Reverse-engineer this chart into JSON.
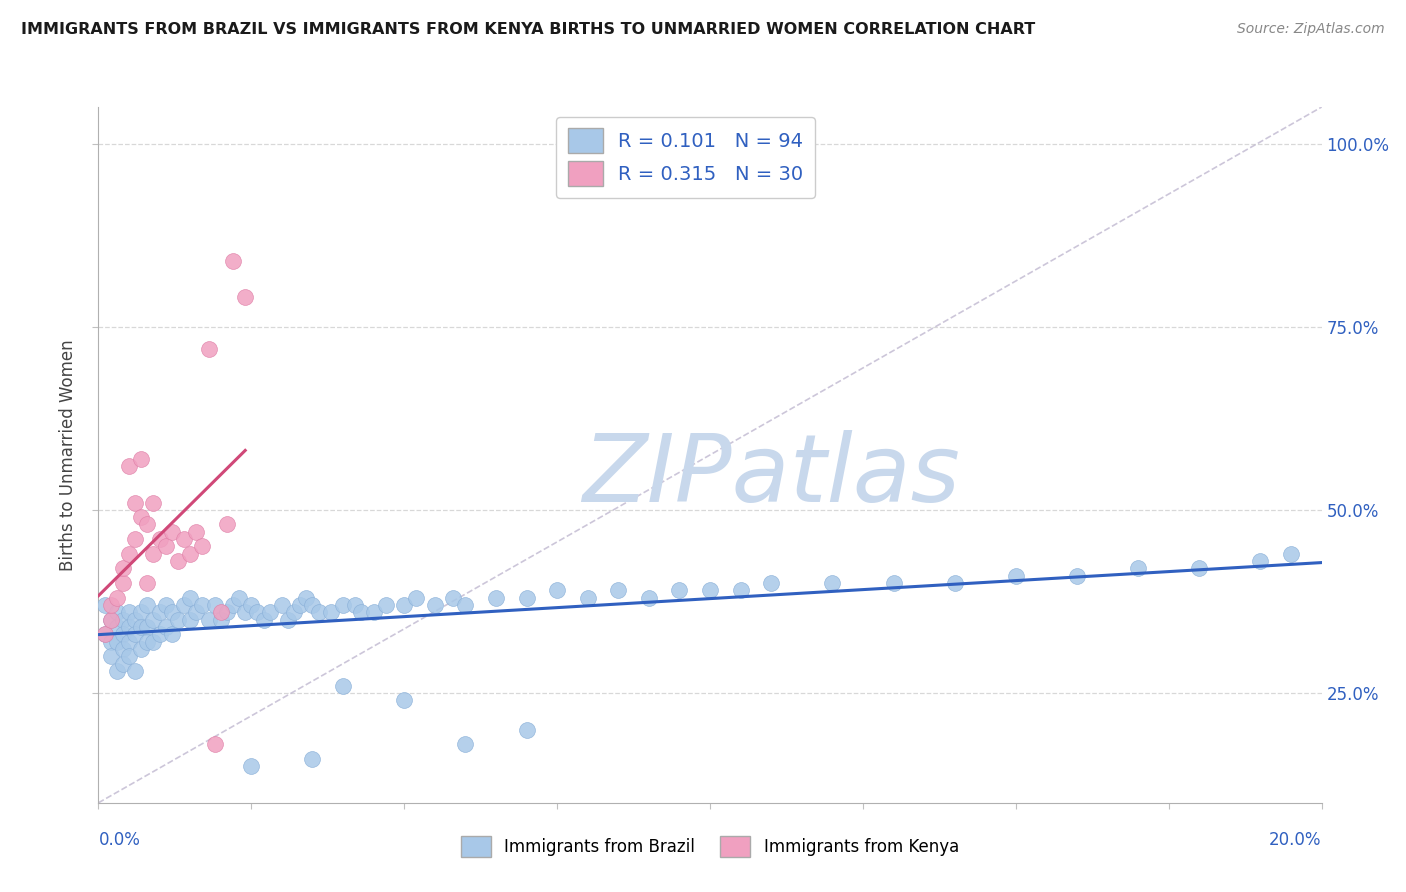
{
  "title": "IMMIGRANTS FROM BRAZIL VS IMMIGRANTS FROM KENYA BIRTHS TO UNMARRIED WOMEN CORRELATION CHART",
  "source": "Source: ZipAtlas.com",
  "ylabel": "Births to Unmarried Women",
  "brazil_color": "#a8c8e8",
  "kenya_color": "#f0a0c0",
  "brazil_line_color": "#3060c0",
  "kenya_line_color": "#d04878",
  "R_brazil": 0.101,
  "N_brazil": 94,
  "R_kenya": 0.315,
  "N_kenya": 30,
  "xlim": [
    0.0,
    0.2
  ],
  "ylim": [
    0.1,
    1.05
  ],
  "ytick_vals": [
    0.25,
    0.5,
    0.75,
    1.0
  ],
  "ytick_labels": [
    "25.0%",
    "50.0%",
    "75.0%",
    "100.0%"
  ],
  "watermark": "ZIPatlas",
  "watermark_color": "#c8d8ec",
  "background_color": "#ffffff",
  "grid_color": "#d8d8d8",
  "brazil_x": [
    0.001,
    0.001,
    0.002,
    0.002,
    0.002,
    0.003,
    0.003,
    0.003,
    0.003,
    0.004,
    0.004,
    0.004,
    0.004,
    0.005,
    0.005,
    0.005,
    0.005,
    0.006,
    0.006,
    0.006,
    0.007,
    0.007,
    0.007,
    0.008,
    0.008,
    0.008,
    0.009,
    0.009,
    0.01,
    0.01,
    0.011,
    0.011,
    0.012,
    0.012,
    0.013,
    0.014,
    0.015,
    0.015,
    0.016,
    0.017,
    0.018,
    0.019,
    0.02,
    0.021,
    0.022,
    0.023,
    0.024,
    0.025,
    0.026,
    0.027,
    0.028,
    0.03,
    0.031,
    0.032,
    0.033,
    0.034,
    0.035,
    0.036,
    0.038,
    0.04,
    0.042,
    0.043,
    0.045,
    0.047,
    0.05,
    0.052,
    0.055,
    0.058,
    0.06,
    0.065,
    0.07,
    0.075,
    0.08,
    0.085,
    0.09,
    0.095,
    0.1,
    0.105,
    0.11,
    0.12,
    0.13,
    0.14,
    0.15,
    0.16,
    0.17,
    0.18,
    0.19,
    0.195,
    0.04,
    0.05,
    0.06,
    0.07,
    0.025,
    0.035
  ],
  "brazil_y": [
    0.37,
    0.33,
    0.35,
    0.32,
    0.3,
    0.36,
    0.34,
    0.32,
    0.28,
    0.35,
    0.33,
    0.31,
    0.29,
    0.36,
    0.34,
    0.32,
    0.3,
    0.35,
    0.33,
    0.28,
    0.36,
    0.34,
    0.31,
    0.37,
    0.34,
    0.32,
    0.35,
    0.32,
    0.36,
    0.33,
    0.37,
    0.34,
    0.36,
    0.33,
    0.35,
    0.37,
    0.38,
    0.35,
    0.36,
    0.37,
    0.35,
    0.37,
    0.35,
    0.36,
    0.37,
    0.38,
    0.36,
    0.37,
    0.36,
    0.35,
    0.36,
    0.37,
    0.35,
    0.36,
    0.37,
    0.38,
    0.37,
    0.36,
    0.36,
    0.37,
    0.37,
    0.36,
    0.36,
    0.37,
    0.37,
    0.38,
    0.37,
    0.38,
    0.37,
    0.38,
    0.38,
    0.39,
    0.38,
    0.39,
    0.38,
    0.39,
    0.39,
    0.39,
    0.4,
    0.4,
    0.4,
    0.4,
    0.41,
    0.41,
    0.42,
    0.42,
    0.43,
    0.44,
    0.26,
    0.24,
    0.18,
    0.2,
    0.15,
    0.16
  ],
  "kenya_x": [
    0.001,
    0.002,
    0.002,
    0.003,
    0.004,
    0.004,
    0.005,
    0.005,
    0.006,
    0.006,
    0.007,
    0.007,
    0.008,
    0.008,
    0.009,
    0.009,
    0.01,
    0.011,
    0.012,
    0.013,
    0.014,
    0.015,
    0.016,
    0.017,
    0.018,
    0.019,
    0.02,
    0.021,
    0.022,
    0.024
  ],
  "kenya_y": [
    0.33,
    0.35,
    0.37,
    0.38,
    0.4,
    0.42,
    0.44,
    0.56,
    0.46,
    0.51,
    0.49,
    0.57,
    0.4,
    0.48,
    0.44,
    0.51,
    0.46,
    0.45,
    0.47,
    0.43,
    0.46,
    0.44,
    0.47,
    0.45,
    0.72,
    0.18,
    0.36,
    0.48,
    0.84,
    0.79
  ],
  "ref_line_x": [
    0.0,
    0.2
  ],
  "ref_line_y": [
    0.1,
    1.05
  ]
}
